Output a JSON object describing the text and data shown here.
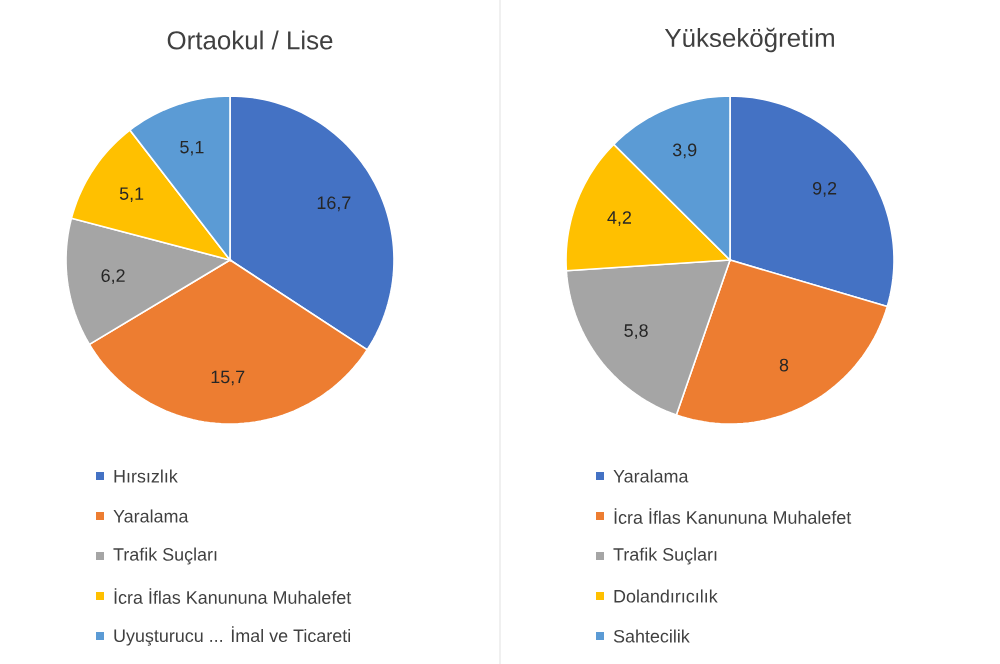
{
  "chart_data": [
    {
      "type": "pie",
      "title": "Ortaokul / Lise",
      "categories": [
        "Hırsızlık",
        "Yaralama",
        "Trafik Suçları",
        "İcra İflas Kanununa Muhalefet",
        "Uyuşturucu ... İmal ve Ticareti"
      ],
      "values": [
        16.7,
        15.7,
        6.2,
        5.1,
        5.1
      ],
      "value_labels": [
        "16,7",
        "15,7",
        "6,2",
        "5,1",
        "5,1"
      ],
      "colors": [
        "#4472c4",
        "#ed7d31",
        "#a5a5a5",
        "#ffc000",
        "#5b9bd5"
      ],
      "legend": "bottom"
    },
    {
      "type": "pie",
      "title": "Yükseköğretim",
      "categories": [
        "Yaralama",
        "İcra İflas Kanununa Muhalefet",
        "Trafik Suçları",
        "Dolandırıcılık",
        "Sahtecilik"
      ],
      "values": [
        9.2,
        8,
        5.8,
        4.2,
        3.9
      ],
      "value_labels": [
        "9,2",
        "8",
        "5,8",
        "4,2",
        "3,9"
      ],
      "colors": [
        "#4472c4",
        "#ed7d31",
        "#a5a5a5",
        "#ffc000",
        "#5b9bd5"
      ],
      "legend": "bottom"
    }
  ]
}
